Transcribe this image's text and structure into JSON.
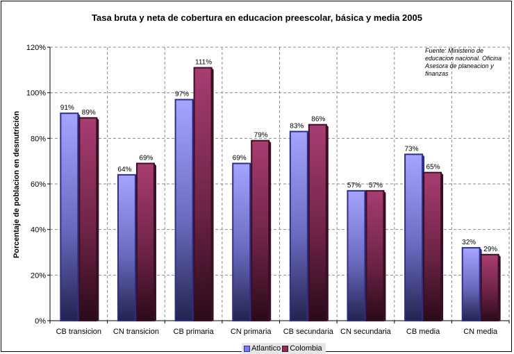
{
  "chart_data": {
    "type": "bar",
    "title": "Tasa bruta y neta de cobertura en educacion preescolar, básica y media 2005",
    "xlabel": "",
    "ylabel": "Porcentaje de poblacion en desnutrición",
    "ylim": [
      0,
      120
    ],
    "yticks": [
      0,
      20,
      40,
      60,
      80,
      100,
      120
    ],
    "ytick_labels": [
      "0%",
      "20%",
      "40%",
      "60%",
      "80%",
      "100%",
      "120%"
    ],
    "categories": [
      "CB transicion",
      "CN transicion",
      "CB primaria",
      "CN primaria",
      "CB secundaria",
      "CN secundaria",
      "CB media",
      "CN media"
    ],
    "series": [
      {
        "name": "Atlantico",
        "values": [
          91,
          64,
          97,
          69,
          83,
          57,
          73,
          32
        ],
        "labels": [
          "91%",
          "64%",
          "97%",
          "69%",
          "83%",
          "57%",
          "73%",
          "32%"
        ],
        "color": "#7b7bf0",
        "edge": "#2e2e8a"
      },
      {
        "name": "Colombia",
        "values": [
          89,
          69,
          111,
          79,
          86,
          57,
          65,
          29
        ],
        "labels": [
          "89%",
          "69%",
          "111%",
          "79%",
          "86%",
          "57%",
          "65%",
          "29%"
        ],
        "color": "#8c2d5c",
        "edge": "#3a0f25"
      }
    ],
    "grid": true,
    "legend_position": "bottom",
    "annotation": "Fuente:  Ministerio de educacion nacional. Oficina Asesora de planeacion y finanzas"
  }
}
